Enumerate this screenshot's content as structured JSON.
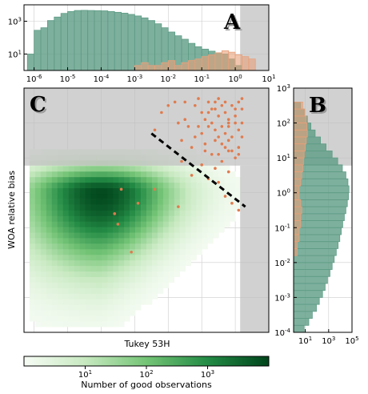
{
  "chart_data": [
    {
      "panel": "A",
      "type": "histogram",
      "x_scale": "log",
      "y_scale": "log",
      "xlim": [
        5e-07,
        10
      ],
      "ylim": [
        1,
        10000
      ],
      "x_tick_labels": [
        "10^-6",
        "10^-5",
        "10^-4",
        "10^-3",
        "10^-2",
        "10^-1",
        "10^0",
        "10^1"
      ],
      "y_tick_labels": [
        "10^1",
        "10^3"
      ],
      "shaded_threshold_x": [
        1.4,
        10
      ],
      "series": [
        {
          "color": "#5e9c86",
          "bin_edges_log10": [
            -6.2,
            -6.0,
            -5.8,
            -5.6,
            -5.4,
            -5.2,
            -5.0,
            -4.8,
            -4.6,
            -4.4,
            -4.2,
            -4.0,
            -3.8,
            -3.6,
            -3.4,
            -3.2,
            -3.0,
            -2.8,
            -2.6,
            -2.4,
            -2.2,
            -2.0,
            -1.8,
            -1.6,
            -1.4,
            -1.2,
            -1.0,
            -0.8,
            -0.6,
            -0.4,
            -0.2,
            0.0,
            0.2,
            0.4
          ],
          "counts": [
            10,
            280,
            400,
            1100,
            1800,
            3000,
            3900,
            4500,
            4600,
            4500,
            4400,
            4300,
            3900,
            3500,
            3100,
            2600,
            2100,
            1600,
            1100,
            700,
            400,
            220,
            130,
            80,
            45,
            28,
            20,
            15,
            12,
            10,
            5,
            2,
            1
          ]
        },
        {
          "color": "#e8a07a",
          "bin_edges_log10": [
            -3.0,
            -2.8,
            -2.6,
            -2.4,
            -2.2,
            -2.0,
            -1.8,
            -1.6,
            -1.4,
            -1.2,
            -1.0,
            -0.8,
            -0.6,
            -0.4,
            -0.2,
            0.0,
            0.2,
            0.4,
            0.6
          ],
          "counts": [
            2,
            3,
            2,
            2,
            3,
            4,
            2,
            3,
            4,
            5,
            7,
            9,
            12,
            16,
            13,
            9,
            7,
            5
          ]
        }
      ]
    },
    {
      "panel": "B",
      "type": "histogram",
      "orientation": "horizontal",
      "x_scale": "log",
      "y_scale": "log",
      "xlim": [
        1,
        100000
      ],
      "ylim": [
        0.0001,
        1000
      ],
      "x_tick_labels": [
        "10^1",
        "10^3",
        "10^5"
      ],
      "y_tick_labels": [
        "10^-4",
        "10^-3",
        "10^-2",
        "10^-1",
        "10^0",
        "10^1",
        "10^2",
        "10^3"
      ],
      "shaded_threshold_y": [
        6,
        1000
      ],
      "series": [
        {
          "color": "#5e9c86",
          "bin_edges_log10": [
            -4.0,
            -3.8,
            -3.6,
            -3.4,
            -3.2,
            -3.0,
            -2.8,
            -2.6,
            -2.4,
            -2.2,
            -2.0,
            -1.8,
            -1.6,
            -1.4,
            -1.2,
            -1.0,
            -0.8,
            -0.6,
            -0.4,
            -0.2,
            0.0,
            0.2,
            0.4,
            0.6,
            0.8,
            1.0,
            1.2,
            1.4,
            1.6,
            1.8,
            2.0,
            2.2,
            2.4,
            2.6
          ],
          "counts": [
            8,
            20,
            40,
            90,
            160,
            300,
            500,
            800,
            1300,
            2000,
            3000,
            4500,
            6500,
            9000,
            12000,
            16000,
            22000,
            30000,
            40000,
            50000,
            55000,
            45000,
            30000,
            15000,
            6000,
            2000,
            600,
            200,
            70,
            30,
            15,
            8,
            4
          ]
        },
        {
          "color": "#e8a07a",
          "bin_edges_log10": [
            -1.8,
            -1.6,
            -1.4,
            -1.2,
            -1.0,
            -0.8,
            -0.6,
            -0.4,
            -0.2,
            0.0,
            0.2,
            0.4,
            0.6,
            0.8,
            1.0,
            1.2,
            1.4,
            1.6,
            1.8,
            2.0,
            2.2,
            2.4,
            2.6
          ],
          "counts": [
            2,
            2,
            3,
            3,
            4,
            4,
            5,
            4,
            3,
            3,
            4,
            5,
            6,
            7,
            8,
            10,
            12,
            15,
            14,
            12,
            9,
            6
          ]
        }
      ]
    },
    {
      "panel": "C",
      "type": "heatmap",
      "x_scale": "log",
      "y_scale": "log",
      "xlim": [
        5e-07,
        10
      ],
      "ylim": [
        0.0001,
        1000
      ],
      "xlabel": "Tukey 53H",
      "ylabel": "WOA relative bias",
      "shaded_threshold_x": [
        1.4,
        10
      ],
      "shaded_threshold_y": [
        6,
        1000
      ],
      "density_peak_log10": {
        "x": -4.0,
        "y": 0.0
      },
      "colorbar": {
        "label": "Number of good observations",
        "scale": "log",
        "range": [
          1,
          10000
        ],
        "tick_labels": [
          "10^1",
          "10^2",
          "10^3"
        ],
        "colors": [
          "#f7fcf5",
          "#c7e9c0",
          "#74c476",
          "#238b45",
          "#00441b"
        ]
      },
      "dashed_line_log10": {
        "x": [
          -2.5,
          0.3
        ],
        "y": [
          1.7,
          -0.4
        ]
      },
      "scatter_color": "#e07b4e",
      "scatter_log10": [
        [
          -0.8,
          2.3
        ],
        [
          -0.5,
          1.6
        ],
        [
          -0.2,
          2.0
        ],
        [
          0.0,
          2.2
        ],
        [
          -0.6,
          2.4
        ],
        [
          -0.1,
          1.2
        ],
        [
          0.1,
          1.8
        ],
        [
          -0.3,
          2.6
        ],
        [
          -1.2,
          2.5
        ],
        [
          -1.5,
          2.1
        ],
        [
          -0.9,
          1.4
        ],
        [
          -0.4,
          1.9
        ],
        [
          0.2,
          2.4
        ],
        [
          -0.7,
          1.1
        ],
        [
          -1.0,
          1.7
        ],
        [
          -0.2,
          1.5
        ],
        [
          0.1,
          2.6
        ],
        [
          -1.8,
          2.6
        ],
        [
          -0.5,
          2.2
        ],
        [
          -0.3,
          1.3
        ],
        [
          -0.1,
          2.5
        ],
        [
          -0.6,
          1.8
        ],
        [
          0.0,
          1.0
        ],
        [
          -1.3,
          1.3
        ],
        [
          -0.8,
          1.9
        ],
        [
          0.2,
          1.6
        ],
        [
          -0.4,
          2.5
        ],
        [
          -2.2,
          2.3
        ],
        [
          -1.6,
          1.5
        ],
        [
          -0.2,
          2.1
        ],
        [
          -0.9,
          2.1
        ],
        [
          -0.5,
          1.1
        ],
        [
          0.1,
          1.3
        ],
        [
          -1.1,
          2.7
        ],
        [
          -0.7,
          2.0
        ],
        [
          -0.3,
          1.7
        ],
        [
          0.0,
          2.0
        ],
        [
          -1.4,
          1.9
        ],
        [
          -0.6,
          2.6
        ],
        [
          -0.2,
          1.9
        ],
        [
          -2.0,
          2.5
        ],
        [
          -0.8,
          2.6
        ],
        [
          -0.4,
          1.4
        ],
        [
          0.2,
          2.0
        ],
        [
          -1.2,
          1.6
        ],
        [
          -0.1,
          1.6
        ],
        [
          -0.5,
          2.7
        ],
        [
          -1.7,
          2.0
        ],
        [
          -0.9,
          1.2
        ],
        [
          0.0,
          2.4
        ],
        [
          -0.3,
          2.3
        ],
        [
          -1.0,
          2.3
        ],
        [
          -0.6,
          1.5
        ],
        [
          0.1,
          1.1
        ],
        [
          -2.4,
          1.8
        ],
        [
          -1.5,
          2.6
        ],
        [
          -0.7,
          2.4
        ],
        [
          -0.2,
          1.2
        ],
        [
          0.2,
          2.7
        ],
        [
          -1.1,
          1.9
        ],
        [
          -0.4,
          0.9
        ],
        [
          -1.0,
          0.8
        ],
        [
          -0.6,
          0.7
        ],
        [
          -1.3,
          0.5
        ],
        [
          -0.2,
          0.6
        ],
        [
          -0.8,
          0.4
        ],
        [
          -1.6,
          0.9
        ],
        [
          -0.5,
          0.3
        ],
        [
          -0.1,
          -0.3
        ],
        [
          0.1,
          -0.5
        ],
        [
          -0.3,
          -0.1
        ],
        [
          -1.7,
          -0.4
        ],
        [
          -3.4,
          0.1
        ],
        [
          -3.6,
          -0.6
        ],
        [
          -2.4,
          0.1
        ],
        [
          -2.9,
          -0.3
        ],
        [
          -3.5,
          -0.9
        ],
        [
          -3.1,
          -1.7
        ]
      ]
    }
  ]
}
